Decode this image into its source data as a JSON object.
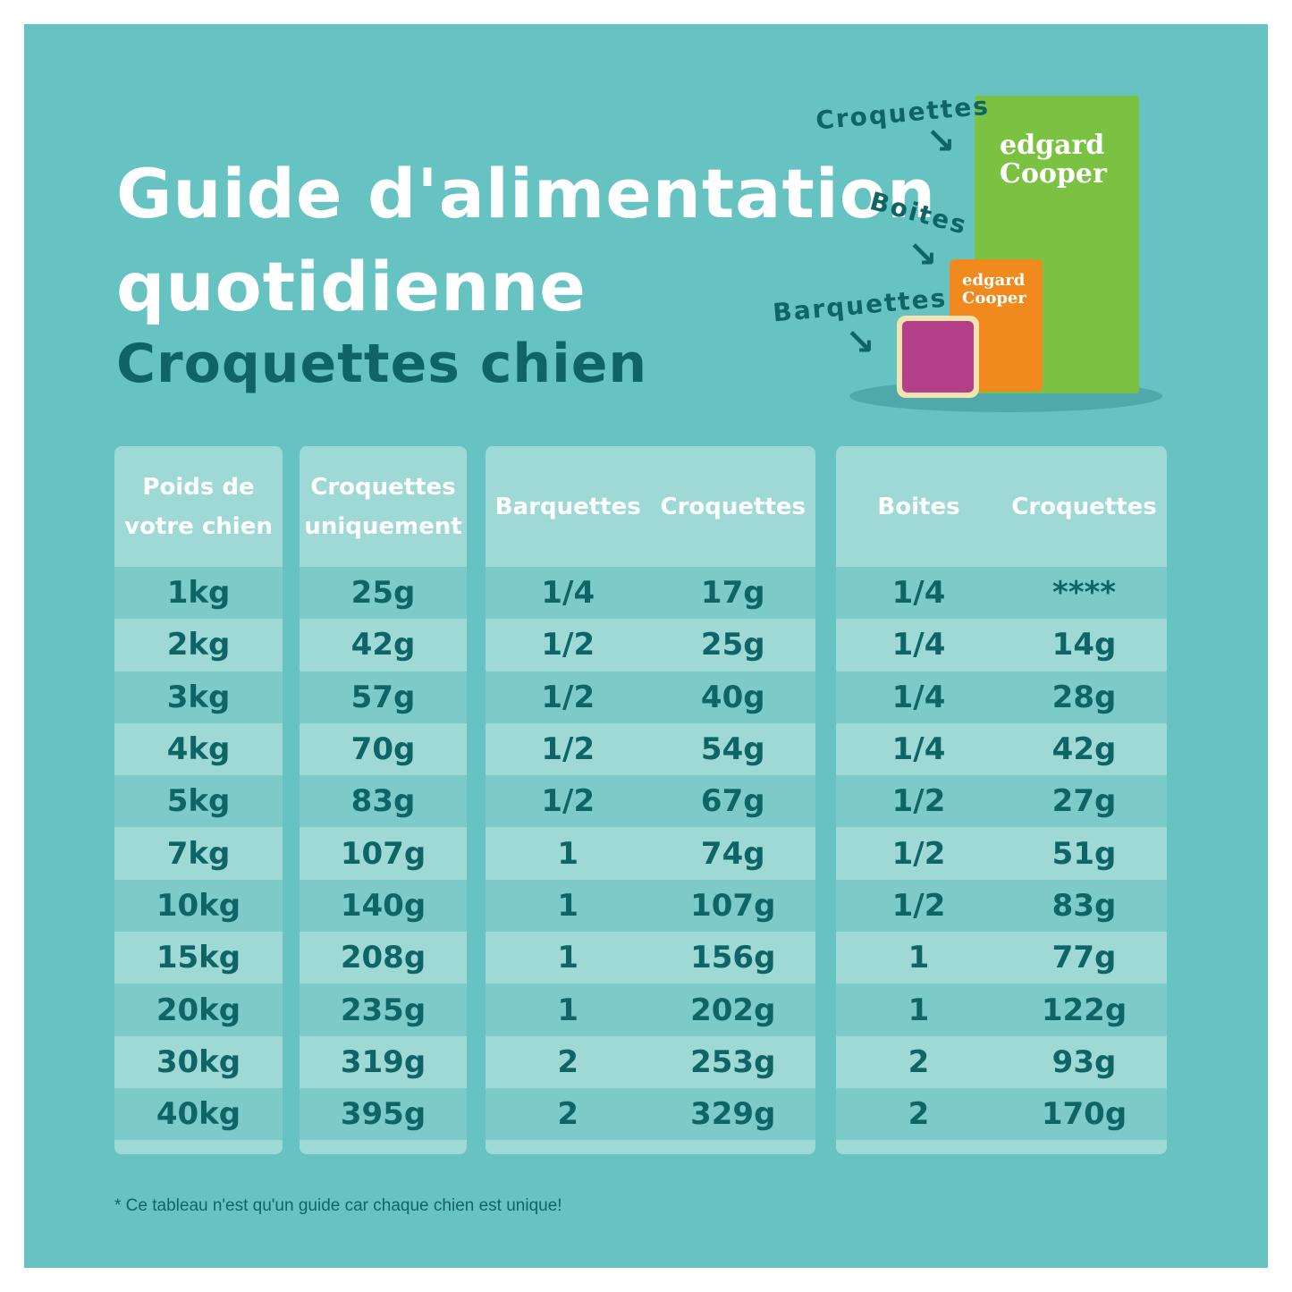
{
  "header": {
    "title_line1": "Guide d'alimentation",
    "title_line2": "quotidienne",
    "subtitle": "Croquettes chien"
  },
  "products": {
    "labels": {
      "kibble": "Croquettes",
      "cans": "Boites",
      "trays": "Barquettes"
    },
    "brand": "edgard Cooper"
  },
  "tables": [
    {
      "headers": [
        "Poids de votre chien"
      ],
      "rows": [
        [
          "1kg"
        ],
        [
          "2kg"
        ],
        [
          "3kg"
        ],
        [
          "4kg"
        ],
        [
          "5kg"
        ],
        [
          "7kg"
        ],
        [
          "10kg"
        ],
        [
          "15kg"
        ],
        [
          "20kg"
        ],
        [
          "30kg"
        ],
        [
          "40kg"
        ]
      ]
    },
    {
      "headers": [
        "Croquettes uniquement"
      ],
      "rows": [
        [
          "25g"
        ],
        [
          "42g"
        ],
        [
          "57g"
        ],
        [
          "70g"
        ],
        [
          "83g"
        ],
        [
          "107g"
        ],
        [
          "140g"
        ],
        [
          "208g"
        ],
        [
          "235g"
        ],
        [
          "319g"
        ],
        [
          "395g"
        ]
      ]
    },
    {
      "headers": [
        "Barquettes",
        "Croquettes"
      ],
      "rows": [
        [
          "1/4",
          "17g"
        ],
        [
          "1/2",
          "25g"
        ],
        [
          "1/2",
          "40g"
        ],
        [
          "1/2",
          "54g"
        ],
        [
          "1/2",
          "67g"
        ],
        [
          "1",
          "74g"
        ],
        [
          "1",
          "107g"
        ],
        [
          "1",
          "156g"
        ],
        [
          "1",
          "202g"
        ],
        [
          "2",
          "253g"
        ],
        [
          "2",
          "329g"
        ]
      ]
    },
    {
      "headers": [
        "Boites",
        "Croquettes"
      ],
      "rows": [
        [
          "1/4",
          "****"
        ],
        [
          "1/4",
          "14g"
        ],
        [
          "1/4",
          "28g"
        ],
        [
          "1/4",
          "42g"
        ],
        [
          "1/2",
          "27g"
        ],
        [
          "1/2",
          "51g"
        ],
        [
          "1/2",
          "83g"
        ],
        [
          "1",
          "77g"
        ],
        [
          "1",
          "122g"
        ],
        [
          "2",
          "93g"
        ],
        [
          "2",
          "170g"
        ]
      ]
    }
  ],
  "footnote": "* Ce tableau n'est qu'un guide car chaque chien est unique!",
  "colors": {
    "background": "#66c3c2",
    "table": "#9ed9d6",
    "row_alt": "#7ccbc9",
    "text_dark": "#0f6466"
  }
}
